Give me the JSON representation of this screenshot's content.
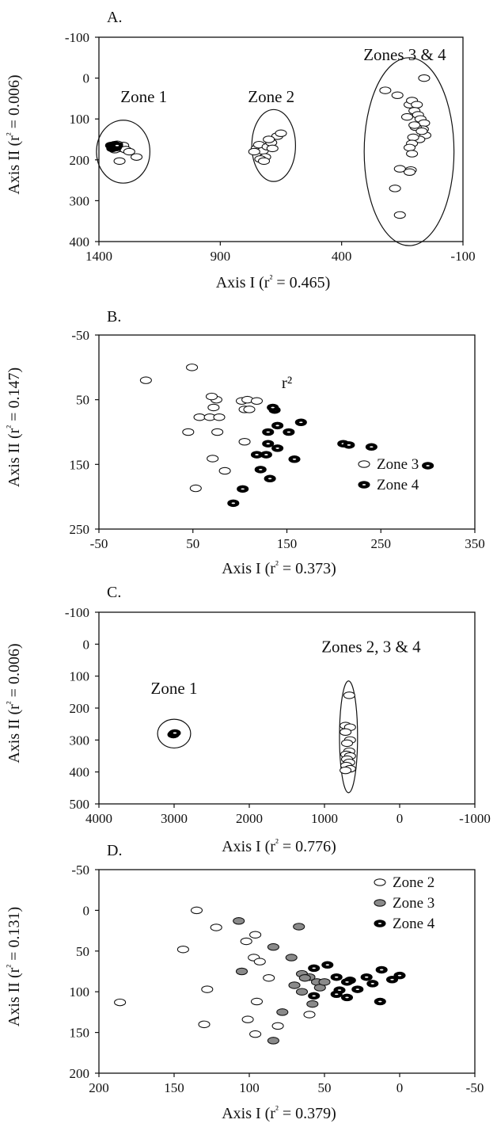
{
  "chart_data": [
    {
      "type": "scatter",
      "panel_label": "A.",
      "xlabel": "Axis I (r² = 0.465)",
      "ylabel": "Axis II (r² = 0.006)",
      "x_range": [
        1400,
        -100
      ],
      "y_range": [
        -100,
        400
      ],
      "x_ticks": [
        "1400",
        "900",
        "400",
        "-100"
      ],
      "y_ticks": [
        "-100",
        "0",
        "100",
        "200",
        "300",
        "400"
      ],
      "grid": false,
      "annotations": [
        {
          "text": "Zone 1",
          "x": 1215,
          "y": 59
        },
        {
          "text": "Zone 2",
          "x": 690,
          "y": 59
        },
        {
          "text": "Zones 3 & 4",
          "x": 140,
          "y": -44
        }
      ],
      "ellipses": [
        {
          "cx": 1300,
          "cy": 180,
          "rx": 110,
          "ry": 77
        },
        {
          "cx": 680,
          "cy": 165,
          "rx": 90,
          "ry": 88
        },
        {
          "cx": 122,
          "cy": 180,
          "rx": 185,
          "ry": 230
        }
      ],
      "series": [
        {
          "style": "open",
          "points": [
            [
              1340,
              165
            ],
            [
              1330,
              170
            ],
            [
              1320,
              172
            ],
            [
              1310,
              168
            ],
            [
              1300,
              165
            ],
            [
              1290,
              175
            ],
            [
              1275,
              180
            ],
            [
              1245,
              193
            ],
            [
              1315,
              203
            ],
            [
              1335,
              175
            ],
            [
              1325,
              162
            ],
            [
              750,
              172
            ],
            [
              740,
              163
            ],
            [
              725,
              178
            ],
            [
              715,
              193
            ],
            [
              705,
              168
            ],
            [
              690,
              158
            ],
            [
              685,
              172
            ],
            [
              665,
              142
            ],
            [
              650,
              135
            ],
            [
              735,
              198
            ],
            [
              720,
              203
            ],
            [
              700,
              150
            ],
            [
              760,
              180
            ],
            [
              220,
              30
            ],
            [
              170,
              42
            ],
            [
              60,
              0
            ],
            [
              120,
              65
            ],
            [
              110,
              55
            ],
            [
              90,
              65
            ],
            [
              100,
              80
            ],
            [
              85,
              90
            ],
            [
              75,
              100
            ],
            [
              60,
              110
            ],
            [
              65,
              125
            ],
            [
              55,
              140
            ],
            [
              80,
              150
            ],
            [
              105,
              145
            ],
            [
              95,
              120
            ],
            [
              110,
              160
            ],
            [
              120,
              170
            ],
            [
              110,
              185
            ],
            [
              115,
              225
            ],
            [
              120,
              230
            ],
            [
              160,
              222
            ],
            [
              180,
              270
            ],
            [
              160,
              335
            ],
            [
              100,
              115
            ],
            [
              70,
              130
            ],
            [
              130,
              95
            ]
          ]
        },
        {
          "style": "filled",
          "points": [
            [
              1350,
              165
            ],
            [
              1345,
              172
            ],
            [
              1340,
              168
            ],
            [
              1335,
              163
            ],
            [
              1330,
              170
            ],
            [
              1325,
              165
            ]
          ]
        }
      ]
    },
    {
      "type": "scatter",
      "panel_label": "B.",
      "xlabel": "Axis I (r² = 0.373)",
      "ylabel": "Axis II (r² = 0.147)",
      "x_range": [
        -50,
        350
      ],
      "y_range": [
        -50,
        250
      ],
      "x_ticks": [
        "-50",
        "50",
        "150",
        "250",
        "350"
      ],
      "y_ticks": [
        "-50",
        "50",
        "150",
        "250"
      ],
      "grid": false,
      "annotations": [
        {
          "text": "r²",
          "x": 150,
          "y": 32
        }
      ],
      "legend": [
        {
          "label": "Zone 3",
          "style": "open"
        },
        {
          "label": "Zone 4",
          "style": "filled"
        }
      ],
      "legend_position": "bottom-right",
      "series": [
        {
          "name": "Zone 3",
          "style": "open",
          "points": [
            [
              53,
              187
            ],
            [
              84,
              160
            ],
            [
              71,
              141
            ],
            [
              45,
              100
            ],
            [
              76,
              100
            ],
            [
              57,
              77
            ],
            [
              68,
              77
            ],
            [
              78,
              77
            ],
            [
              72,
              62
            ],
            [
              75,
              50
            ],
            [
              70,
              45
            ],
            [
              105,
              65
            ],
            [
              110,
              65
            ],
            [
              102,
              52
            ],
            [
              108,
              50
            ],
            [
              118,
              52
            ],
            [
              105,
              115
            ],
            [
              0,
              20
            ],
            [
              49,
              0
            ]
          ]
        },
        {
          "name": "Zone 4",
          "style": "filled",
          "points": [
            [
              93,
              210
            ],
            [
              103,
              188
            ],
            [
              132,
              172
            ],
            [
              122,
              158
            ],
            [
              118,
              135
            ],
            [
              128,
              135
            ],
            [
              140,
              125
            ],
            [
              158,
              142
            ],
            [
              130,
              118
            ],
            [
              130,
              100
            ],
            [
              152,
              100
            ],
            [
              140,
              90
            ],
            [
              165,
              85
            ],
            [
              137,
              66
            ],
            [
              135,
              62
            ],
            [
              210,
              118
            ],
            [
              216,
              120
            ],
            [
              240,
              123
            ],
            [
              300,
              152
            ]
          ]
        }
      ]
    },
    {
      "type": "scatter",
      "panel_label": "C.",
      "xlabel": "Axis I (r² = 0.776)",
      "ylabel": "Axis II (r² = 0.006)",
      "x_range": [
        4000,
        -1000
      ],
      "y_range": [
        -100,
        500
      ],
      "x_ticks": [
        "4000",
        "3000",
        "2000",
        "1000",
        "0",
        "-1000"
      ],
      "y_ticks": [
        "-100",
        "0",
        "100",
        "200",
        "300",
        "400",
        "500"
      ],
      "grid": false,
      "annotations": [
        {
          "text": "Zone 1",
          "x": 3000,
          "y": 155
        },
        {
          "text": "Zones 2, 3 & 4",
          "x": 380,
          "y": 25
        }
      ],
      "ellipses": [
        {
          "cx": 3000,
          "cy": 280,
          "rx": 220,
          "ry": 45
        },
        {
          "cx": 680,
          "cy": 290,
          "rx": 120,
          "ry": 175
        }
      ],
      "series": [
        {
          "style": "open",
          "points": [
            [
              670,
              160
            ],
            [
              720,
              255
            ],
            [
              660,
              260
            ],
            [
              720,
              275
            ],
            [
              660,
              300
            ],
            [
              700,
              310
            ],
            [
              670,
              335
            ],
            [
              710,
              345
            ],
            [
              660,
              350
            ],
            [
              700,
              360
            ],
            [
              670,
              370
            ],
            [
              710,
              380
            ],
            [
              660,
              390
            ],
            [
              720,
              395
            ]
          ]
        },
        {
          "style": "filled",
          "points": [
            [
              3000,
              280
            ],
            [
              3010,
              283
            ],
            [
              2990,
              278
            ]
          ]
        }
      ]
    },
    {
      "type": "scatter",
      "panel_label": "D.",
      "xlabel": "Axis I (r² = 0.379)",
      "ylabel": "Axis II (r² = 0.131)",
      "x_range": [
        200,
        -50
      ],
      "y_range": [
        -50,
        200
      ],
      "x_ticks": [
        "200",
        "150",
        "100",
        "50",
        "0",
        "-50"
      ],
      "y_ticks": [
        "-50",
        "0",
        "50",
        "100",
        "150",
        "200"
      ],
      "grid": false,
      "legend": [
        {
          "label": "Zone 2",
          "style": "open"
        },
        {
          "label": "Zone 3",
          "style": "gray"
        },
        {
          "label": "Zone 4",
          "style": "filled"
        }
      ],
      "legend_position": "top-right",
      "series": [
        {
          "name": "Zone 2",
          "style": "open",
          "points": [
            [
              135,
              0
            ],
            [
              122,
              21
            ],
            [
              96,
              30
            ],
            [
              102,
              38
            ],
            [
              97,
              58
            ],
            [
              93,
              63
            ],
            [
              87,
              83
            ],
            [
              144,
              48
            ],
            [
              128,
              97
            ],
            [
              95,
              112
            ],
            [
              101,
              134
            ],
            [
              81,
              142
            ],
            [
              96,
              152
            ],
            [
              130,
              140
            ],
            [
              186,
              113
            ],
            [
              60,
              128
            ]
          ]
        },
        {
          "name": "Zone 3",
          "style": "gray",
          "points": [
            [
              107,
              13
            ],
            [
              67,
              20
            ],
            [
              84,
              45
            ],
            [
              72,
              58
            ],
            [
              105,
              75
            ],
            [
              65,
              78
            ],
            [
              60,
              82
            ],
            [
              55,
              88
            ],
            [
              70,
              92
            ],
            [
              65,
              100
            ],
            [
              58,
              115
            ],
            [
              78,
              125
            ],
            [
              84,
              160
            ],
            [
              63,
              83
            ],
            [
              53,
              95
            ],
            [
              50,
              88
            ]
          ]
        },
        {
          "name": "Zone 4",
          "style": "filled",
          "points": [
            [
              48,
              67
            ],
            [
              57,
              71
            ],
            [
              42,
              82
            ],
            [
              33,
              86
            ],
            [
              28,
              97
            ],
            [
              22,
              82
            ],
            [
              18,
              90
            ],
            [
              12,
              73
            ],
            [
              5,
              85
            ],
            [
              0,
              80
            ],
            [
              40,
              98
            ],
            [
              35,
              107
            ],
            [
              42,
              103
            ],
            [
              13,
              112
            ],
            [
              35,
              88
            ],
            [
              57,
              105
            ]
          ]
        }
      ]
    }
  ]
}
